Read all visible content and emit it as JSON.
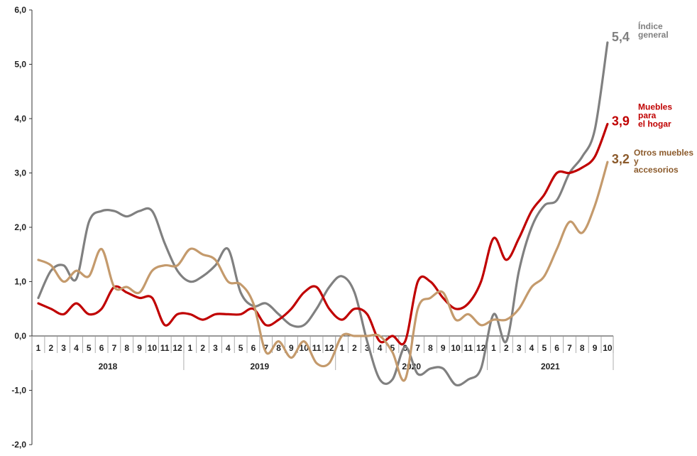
{
  "chart_data": {
    "type": "line",
    "ylim": [
      -2.0,
      6.0
    ],
    "yticks": [
      "-2,0",
      "-1,0",
      "0,0",
      "1,0",
      "2,0",
      "3,0",
      "4,0",
      "5,0",
      "6,0"
    ],
    "ytick_values": [
      -2,
      -1,
      0,
      1,
      2,
      3,
      4,
      5,
      6
    ],
    "categories": [
      "1",
      "2",
      "3",
      "4",
      "5",
      "6",
      "7",
      "8",
      "9",
      "10",
      "11",
      "12",
      "1",
      "2",
      "3",
      "4",
      "5",
      "6",
      "7",
      "8",
      "9",
      "10",
      "11",
      "12",
      "1",
      "2",
      "3",
      "4",
      "5",
      "6",
      "7",
      "8",
      "9",
      "10",
      "11",
      "12",
      "1",
      "2",
      "3",
      "4",
      "5",
      "6",
      "7",
      "8",
      "9",
      "10"
    ],
    "years": [
      {
        "label": "2018",
        "start": 0,
        "end": 11
      },
      {
        "label": "2019",
        "start": 12,
        "end": 23
      },
      {
        "label": "2020",
        "start": 24,
        "end": 35
      },
      {
        "label": "2021",
        "start": 36,
        "end": 45
      }
    ],
    "grid": false,
    "series": [
      {
        "key": "general",
        "color": "#808080",
        "end_value": "5,4",
        "label_lines": [
          "Índice",
          "general"
        ],
        "values": [
          0.7,
          1.2,
          1.3,
          1.05,
          2.1,
          2.3,
          2.3,
          2.2,
          2.3,
          2.3,
          1.7,
          1.2,
          1.0,
          1.1,
          1.3,
          1.6,
          0.8,
          0.55,
          0.6,
          0.4,
          0.2,
          0.2,
          0.5,
          0.9,
          1.1,
          0.8,
          -0.1,
          -0.8,
          -0.8,
          -0.2,
          -0.7,
          -0.6,
          -0.6,
          -0.9,
          -0.8,
          -0.6,
          0.4,
          -0.1,
          1.2,
          2.0,
          2.4,
          2.5,
          3.0,
          3.3,
          3.8,
          5.4
        ]
      },
      {
        "key": "hogar",
        "color": "#c00000",
        "end_value": "3,9",
        "label_lines": [
          "Muebles",
          "para",
          "el hogar"
        ],
        "values": [
          0.6,
          0.5,
          0.4,
          0.6,
          0.4,
          0.5,
          0.9,
          0.8,
          0.7,
          0.7,
          0.2,
          0.4,
          0.4,
          0.3,
          0.4,
          0.4,
          0.4,
          0.5,
          0.2,
          0.3,
          0.5,
          0.8,
          0.9,
          0.5,
          0.3,
          0.5,
          0.4,
          -0.1,
          0.0,
          -0.1,
          1.0,
          1.0,
          0.7,
          0.5,
          0.6,
          1.0,
          1.8,
          1.4,
          1.8,
          2.3,
          2.6,
          3.0,
          3.0,
          3.1,
          3.3,
          3.9
        ]
      },
      {
        "key": "otros",
        "color": "#c49a6c",
        "end_value": "3,2",
        "label_lines": [
          "Otros muebles",
          "y",
          "accesorios"
        ],
        "values": [
          1.4,
          1.3,
          1.0,
          1.2,
          1.1,
          1.6,
          0.9,
          0.9,
          0.8,
          1.2,
          1.3,
          1.3,
          1.6,
          1.5,
          1.4,
          1.0,
          0.95,
          0.6,
          -0.3,
          -0.1,
          -0.4,
          -0.1,
          -0.5,
          -0.5,
          0.0,
          0.0,
          0.0,
          0.0,
          -0.3,
          -0.8,
          0.5,
          0.7,
          0.8,
          0.3,
          0.4,
          0.2,
          0.3,
          0.3,
          0.5,
          0.9,
          1.1,
          1.6,
          2.1,
          1.9,
          2.4,
          3.2
        ]
      }
    ]
  }
}
